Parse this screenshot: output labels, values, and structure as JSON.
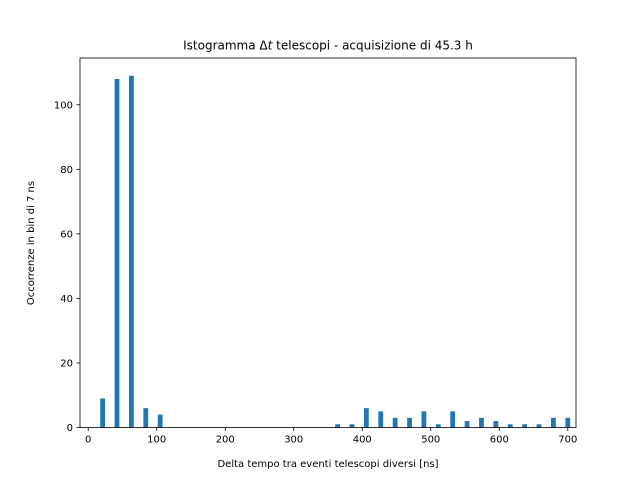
{
  "chart_data": {
    "type": "bar",
    "title": "Istogramma Δt telescopi - acquisizione di 45.3 h",
    "title_prefix": "Istogramma ",
    "title_symbol": "Δ",
    "title_italic": "t",
    "title_suffix": " telescopi - acquisizione di 45.3 h",
    "xlabel": "Delta tempo tra eventi telescopi diversi [ns]",
    "ylabel": "Occorrenze in bin di 7 ns",
    "xlim": [
      -12,
      712
    ],
    "ylim": [
      0,
      114.5
    ],
    "xticks": [
      0,
      100,
      200,
      300,
      400,
      500,
      600,
      700
    ],
    "yticks": [
      0,
      20,
      40,
      60,
      80,
      100
    ],
    "bar_width": 7,
    "bar_color": "#1f77b4",
    "grid": false,
    "bars": [
      {
        "x": 21,
        "y": 9
      },
      {
        "x": 42,
        "y": 108
      },
      {
        "x": 63,
        "y": 109
      },
      {
        "x": 84,
        "y": 6
      },
      {
        "x": 105,
        "y": 4
      },
      {
        "x": 364,
        "y": 1
      },
      {
        "x": 385,
        "y": 1
      },
      {
        "x": 406,
        "y": 6
      },
      {
        "x": 427,
        "y": 5
      },
      {
        "x": 448,
        "y": 3
      },
      {
        "x": 469,
        "y": 3
      },
      {
        "x": 490,
        "y": 5
      },
      {
        "x": 511,
        "y": 1
      },
      {
        "x": 532,
        "y": 5
      },
      {
        "x": 553,
        "y": 2
      },
      {
        "x": 574,
        "y": 3
      },
      {
        "x": 595,
        "y": 2
      },
      {
        "x": 616,
        "y": 1
      },
      {
        "x": 637,
        "y": 1
      },
      {
        "x": 658,
        "y": 1
      },
      {
        "x": 679,
        "y": 3
      },
      {
        "x": 700,
        "y": 3
      }
    ]
  }
}
